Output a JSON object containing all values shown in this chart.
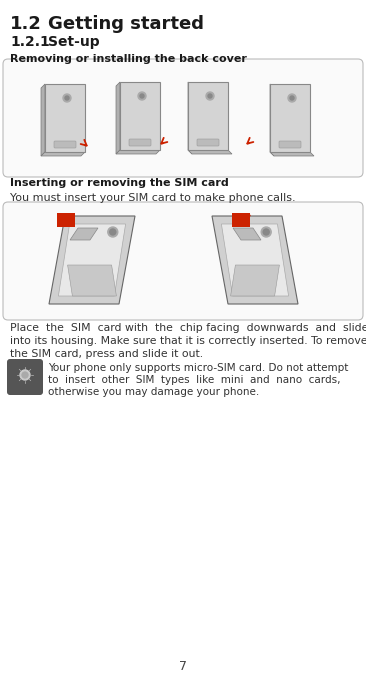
{
  "bg_color": "#ffffff",
  "heading1": "1.2",
  "heading1_tab": "        ",
  "heading1_text": "Getting started",
  "heading2": "1.2.1",
  "heading2_tab": "     ",
  "heading2_text": "Set-up",
  "subheading1": "Removing or installing the back cover",
  "subheading2": "Inserting or removing the SIM card",
  "body1": "You must insert your SIM card to make phone calls.",
  "body2a": "Place  the  SIM  card with  the  chip facing  downwards  and  slide it",
  "body2b": "into its housing. Make sure that it is correctly inserted. To remove",
  "body2c": "the SIM card, press and slide it out.",
  "note_line1": "Your phone only supports micro-SIM card. Do not attempt",
  "note_line2": "to  insert  other  SIM  types  like  mini  and  nano  cards,",
  "note_line3": "otherwise you may damage your phone.",
  "page_number": "7",
  "red": "#cc2200",
  "dark_gray": "#555555",
  "phone_fill": "#d4d4d4",
  "phone_edge": "#888888",
  "box_edge": "#bbbbbb",
  "box_fill": "#fafafa",
  "text_dark": "#1a1a1a",
  "text_body": "#333333"
}
